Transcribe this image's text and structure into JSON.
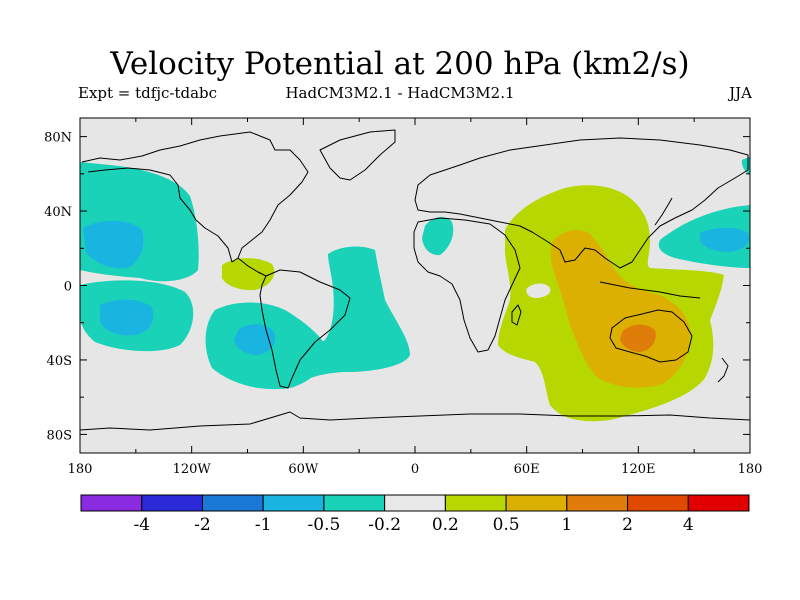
{
  "title": "Velocity Potential at 200 hPa (km2/s)",
  "expt": "Expt = tdfjc-tdabc",
  "model": "HadCM3M2.1 - HadCM3M2.1",
  "season": "JJA",
  "map": {
    "lon_ticks": [
      "180",
      "120W",
      "60W",
      "0",
      "60E",
      "120E",
      "180"
    ],
    "lat_ticks": [
      "80N",
      "40N",
      "0",
      "40S",
      "80S"
    ],
    "lon_range": [
      -180,
      180
    ],
    "lat_range": [
      -90,
      90
    ]
  },
  "colorbar": {
    "colors": [
      "#8a2be2",
      "#2a2ad8",
      "#1a78d6",
      "#1ab4e0",
      "#1ad2b8",
      "#e8e8e8",
      "#b6d800",
      "#dcb000",
      "#e07c0a",
      "#e04a00",
      "#e00000"
    ],
    "labels": [
      "-4",
      "-2",
      "-1",
      "-0.5",
      "-0.2",
      "0.2",
      "0.5",
      "1",
      "2",
      "4"
    ]
  },
  "colors": {
    "background": "#e6e6e6",
    "coast": "#000000"
  }
}
